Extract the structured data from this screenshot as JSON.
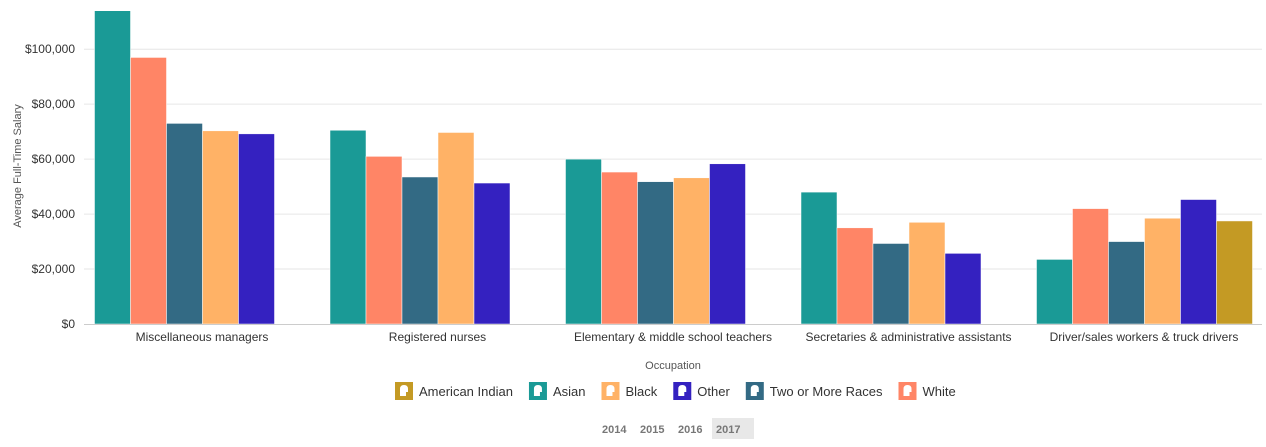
{
  "chart_data": {
    "type": "bar",
    "xlabel": "Occupation",
    "ylabel": "Average Full-Time Salary",
    "ylim": [
      0,
      115000
    ],
    "yticks": [
      0,
      20000,
      40000,
      60000,
      80000,
      100000
    ],
    "ytick_labels": [
      "$0",
      "$20,000",
      "$40,000",
      "$60,000",
      "$80,000",
      "$100,000"
    ],
    "grid": true,
    "legend_position": "bottom",
    "categories": [
      "Miscellaneous managers",
      "Registered nurses",
      "Elementary & middle school teachers",
      "Secretaries & administrative assistants",
      "Driver/sales workers & truck drivers"
    ],
    "series": [
      {
        "name": "Asian",
        "color": "#1a9a96",
        "values": [
          114000,
          70500,
          60000,
          48000,
          23500
        ]
      },
      {
        "name": "White",
        "color": "#ff8566",
        "values": [
          97000,
          61000,
          55300,
          35000,
          42000
        ]
      },
      {
        "name": "Two or More Races",
        "color": "#336a84",
        "values": [
          73000,
          53500,
          51800,
          29300,
          30000
        ]
      },
      {
        "name": "Black",
        "color": "#ffb266",
        "values": [
          70300,
          69700,
          53200,
          37000,
          38500
        ]
      },
      {
        "name": "Other",
        "color": "#3421c0",
        "values": [
          69200,
          51300,
          58300,
          25700,
          45300
        ]
      },
      {
        "name": "American Indian",
        "color": "#c49a24",
        "values": [
          null,
          null,
          null,
          null,
          37500
        ]
      }
    ],
    "legend": [
      {
        "name": "American Indian",
        "color": "#c49a24"
      },
      {
        "name": "Asian",
        "color": "#1a9a96"
      },
      {
        "name": "Black",
        "color": "#ffb266"
      },
      {
        "name": "Other",
        "color": "#3421c0"
      },
      {
        "name": "Two or More Races",
        "color": "#336a84"
      },
      {
        "name": "White",
        "color": "#ff8566"
      }
    ]
  },
  "year_selector": {
    "years": [
      "2014",
      "2015",
      "2016",
      "2017"
    ],
    "selected": "2017"
  }
}
